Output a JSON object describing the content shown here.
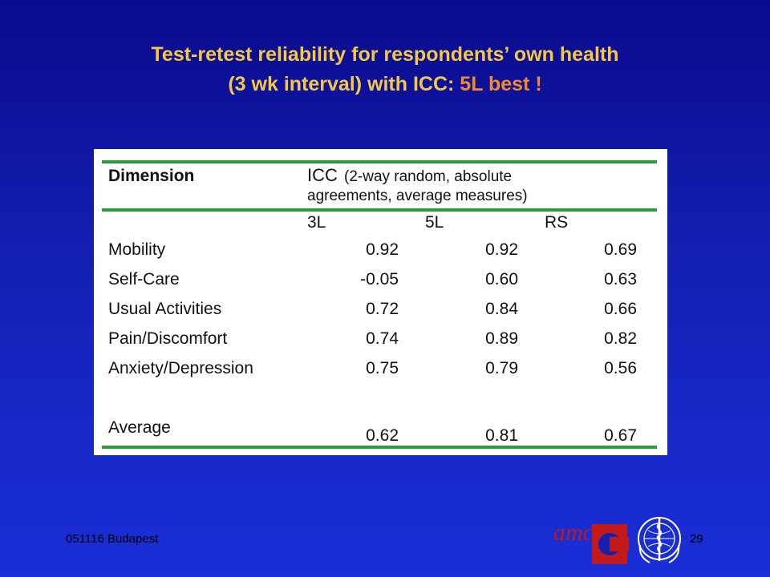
{
  "slide": {
    "title_line1": "Test-retest reliability for respondents’ own health",
    "title_line2_prefix": "(3 wk interval) with ICC: ",
    "title_line2_highlight": "5L best !",
    "title_color": "#f5c842",
    "highlight_color": "#f58a24",
    "background_color": "#1420b4"
  },
  "table": {
    "header_dimension": "Dimension",
    "header_icc": "ICC",
    "header_icc_note_1": "(2-way random, absolute",
    "header_icc_note_2": "agreements, average measures)",
    "col_3l": "3L",
    "col_5l": "5L",
    "col_rs": "RS",
    "rows": [
      {
        "dimension": "Mobility",
        "v3l": "0.92",
        "v5l": "0.92",
        "vrs": "0.69"
      },
      {
        "dimension": "Self-Care",
        "v3l": "-0.05",
        "v5l": "0.60",
        "vrs": "0.63"
      },
      {
        "dimension": "Usual Activities",
        "v3l": "0.72",
        "v5l": "0.84",
        "vrs": "0.66"
      },
      {
        "dimension": "Pain/Discomfort",
        "v3l": "0.74",
        "v5l": "0.89",
        "vrs": "0.82"
      },
      {
        "dimension": "Anxiety/Depression",
        "v3l": "0.75",
        "v5l": "0.79",
        "vrs": "0.56"
      }
    ],
    "average": {
      "dimension": "Average",
      "v3l": "0.62",
      "v5l": "0.81",
      "vrs": "0.67"
    },
    "rule_color": "#2e9a3c"
  },
  "footer": {
    "left_text": "051116 Budapest",
    "page_number": "29",
    "logo_amc_text": "amc",
    "logo_who_icon": "who-emblem-icon",
    "logo_amc_icon": "amc-logo-icon"
  }
}
